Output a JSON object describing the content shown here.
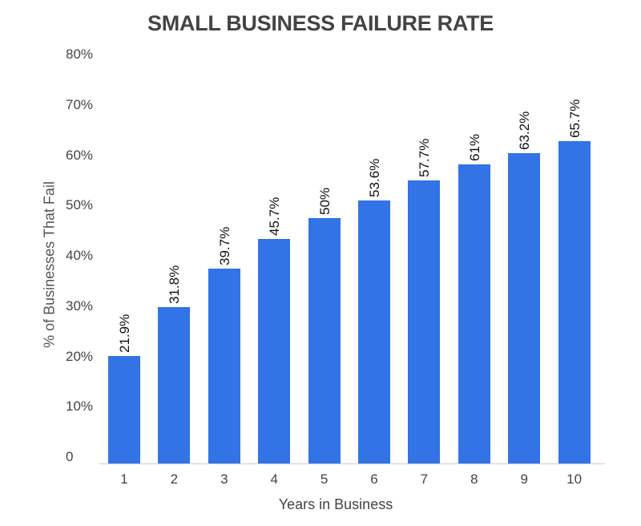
{
  "chart_data": {
    "type": "bar",
    "title": "SMALL BUSINESS FAILURE RATE",
    "xlabel": "Years in Business",
    "ylabel": "% of Businesses That Fail",
    "categories": [
      "1",
      "2",
      "3",
      "4",
      "5",
      "6",
      "7",
      "8",
      "9",
      "10"
    ],
    "values": [
      21.9,
      31.8,
      39.7,
      45.7,
      50,
      53.6,
      57.7,
      61,
      63.2,
      65.7
    ],
    "value_labels": [
      "21.9%",
      "31.8%",
      "39.7%",
      "45.7%",
      "50%",
      "53.6%",
      "57.7%",
      "61%",
      "63.2%",
      "65.7%"
    ],
    "ylim": [
      0,
      80
    ],
    "yticks": [
      "0",
      "10%",
      "20%",
      "30%",
      "40%",
      "50%",
      "60%",
      "70%",
      "80%"
    ],
    "grid": false,
    "legend": null,
    "bar_color": "#3273e6"
  }
}
